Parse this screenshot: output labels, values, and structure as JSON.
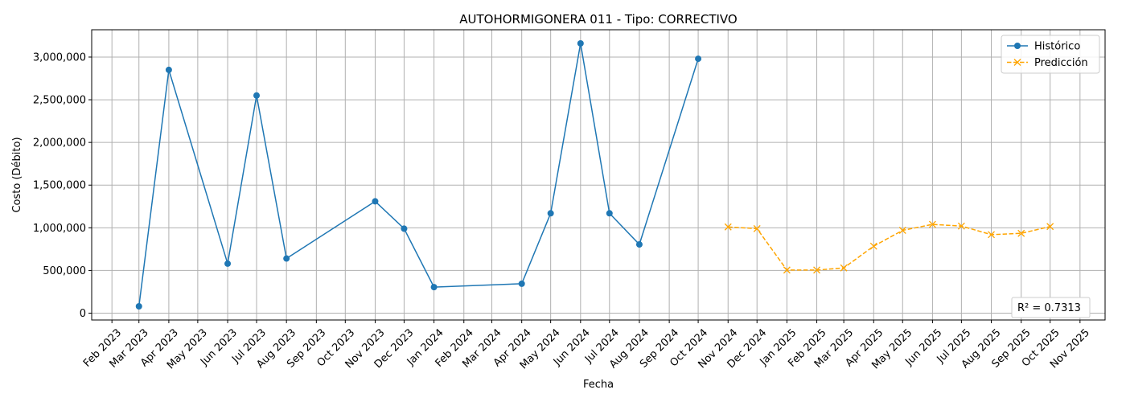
{
  "chart_data": {
    "type": "line",
    "title": "AUTOHORMIGONERA 011 - Tipo: CORRECTIVO",
    "xlabel": "Fecha",
    "ylabel": "Costo (Débito)",
    "xlim": [
      "2023-01-11",
      "2025-11-27"
    ],
    "ylim": [
      -80000,
      3320000
    ],
    "grid": true,
    "legend_position": "upper right",
    "x_tick_labels": [
      "Feb 2023",
      "Mar 2023",
      "Apr 2023",
      "May 2023",
      "Jun 2023",
      "Jul 2023",
      "Aug 2023",
      "Sep 2023",
      "Oct 2023",
      "Nov 2023",
      "Dec 2023",
      "Jan 2024",
      "Feb 2024",
      "Mar 2024",
      "Apr 2024",
      "May 2024",
      "Jun 2024",
      "Jul 2024",
      "Aug 2024",
      "Sep 2024",
      "Oct 2024",
      "Nov 2024",
      "Dec 2024",
      "Jan 2025",
      "Feb 2025",
      "Mar 2025",
      "Apr 2025",
      "May 2025",
      "Jun 2025",
      "Jul 2025",
      "Aug 2025",
      "Sep 2025",
      "Oct 2025",
      "Nov 2025"
    ],
    "x_tick_dates": [
      "2023-02-01",
      "2023-03-01",
      "2023-04-01",
      "2023-05-01",
      "2023-06-01",
      "2023-07-01",
      "2023-08-01",
      "2023-09-01",
      "2023-10-01",
      "2023-11-01",
      "2023-12-01",
      "2024-01-01",
      "2024-02-01",
      "2024-03-01",
      "2024-04-01",
      "2024-05-01",
      "2024-06-01",
      "2024-07-01",
      "2024-08-01",
      "2024-09-01",
      "2024-10-01",
      "2024-11-01",
      "2024-12-01",
      "2025-01-01",
      "2025-02-01",
      "2025-03-01",
      "2025-04-01",
      "2025-05-01",
      "2025-06-01",
      "2025-07-01",
      "2025-08-01",
      "2025-09-01",
      "2025-10-01",
      "2025-11-01"
    ],
    "y_ticks": [
      0,
      500000,
      1000000,
      1500000,
      2000000,
      2500000,
      3000000
    ],
    "y_tick_labels": [
      "0",
      "500,000",
      "1,000,000",
      "1,500,000",
      "2,000,000",
      "2,500,000",
      "3,000,000"
    ],
    "series": [
      {
        "name": "Histórico",
        "color": "#1f77b4",
        "line_style": "solid",
        "marker": "circle",
        "x": [
          "2023-03-01",
          "2023-04-01",
          "2023-06-01",
          "2023-07-01",
          "2023-08-01",
          "2023-11-01",
          "2023-12-01",
          "2024-01-01",
          "2024-04-01",
          "2024-05-01",
          "2024-06-01",
          "2024-07-01",
          "2024-08-01",
          "2024-10-01"
        ],
        "y": [
          80000,
          2850000,
          580000,
          2550000,
          640000,
          1310000,
          990000,
          305000,
          345000,
          1170000,
          3160000,
          1170000,
          805000,
          2980000
        ]
      },
      {
        "name": "Predicción",
        "color": "#ffa500",
        "line_style": "dashed",
        "marker": "x",
        "x": [
          "2024-11-01",
          "2024-12-01",
          "2025-01-01",
          "2025-02-01",
          "2025-03-01",
          "2025-04-01",
          "2025-05-01",
          "2025-06-01",
          "2025-07-01",
          "2025-08-01",
          "2025-09-01",
          "2025-10-01"
        ],
        "y": [
          1010000,
          990000,
          505000,
          505000,
          530000,
          785000,
          970000,
          1040000,
          1020000,
          920000,
          935000,
          1015000
        ]
      }
    ],
    "annotation": "R² = 0.7313"
  }
}
